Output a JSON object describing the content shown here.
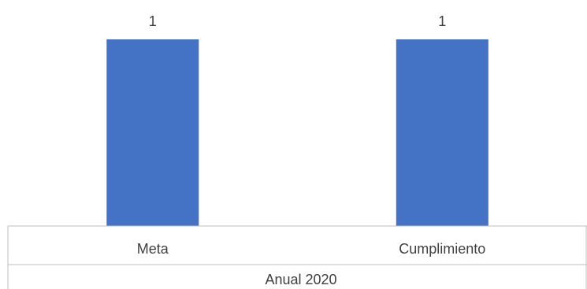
{
  "chart_data": {
    "type": "bar",
    "categories": [
      "Meta",
      "Cumplimiento"
    ],
    "values": [
      1,
      1
    ],
    "data_labels": [
      "1",
      "1"
    ],
    "group_label": "Anual 2020",
    "title": "",
    "xlabel": "",
    "ylabel": "",
    "ylim": [
      0,
      1
    ],
    "grid": false,
    "legend": "none",
    "bar_color": "#4472c4"
  }
}
